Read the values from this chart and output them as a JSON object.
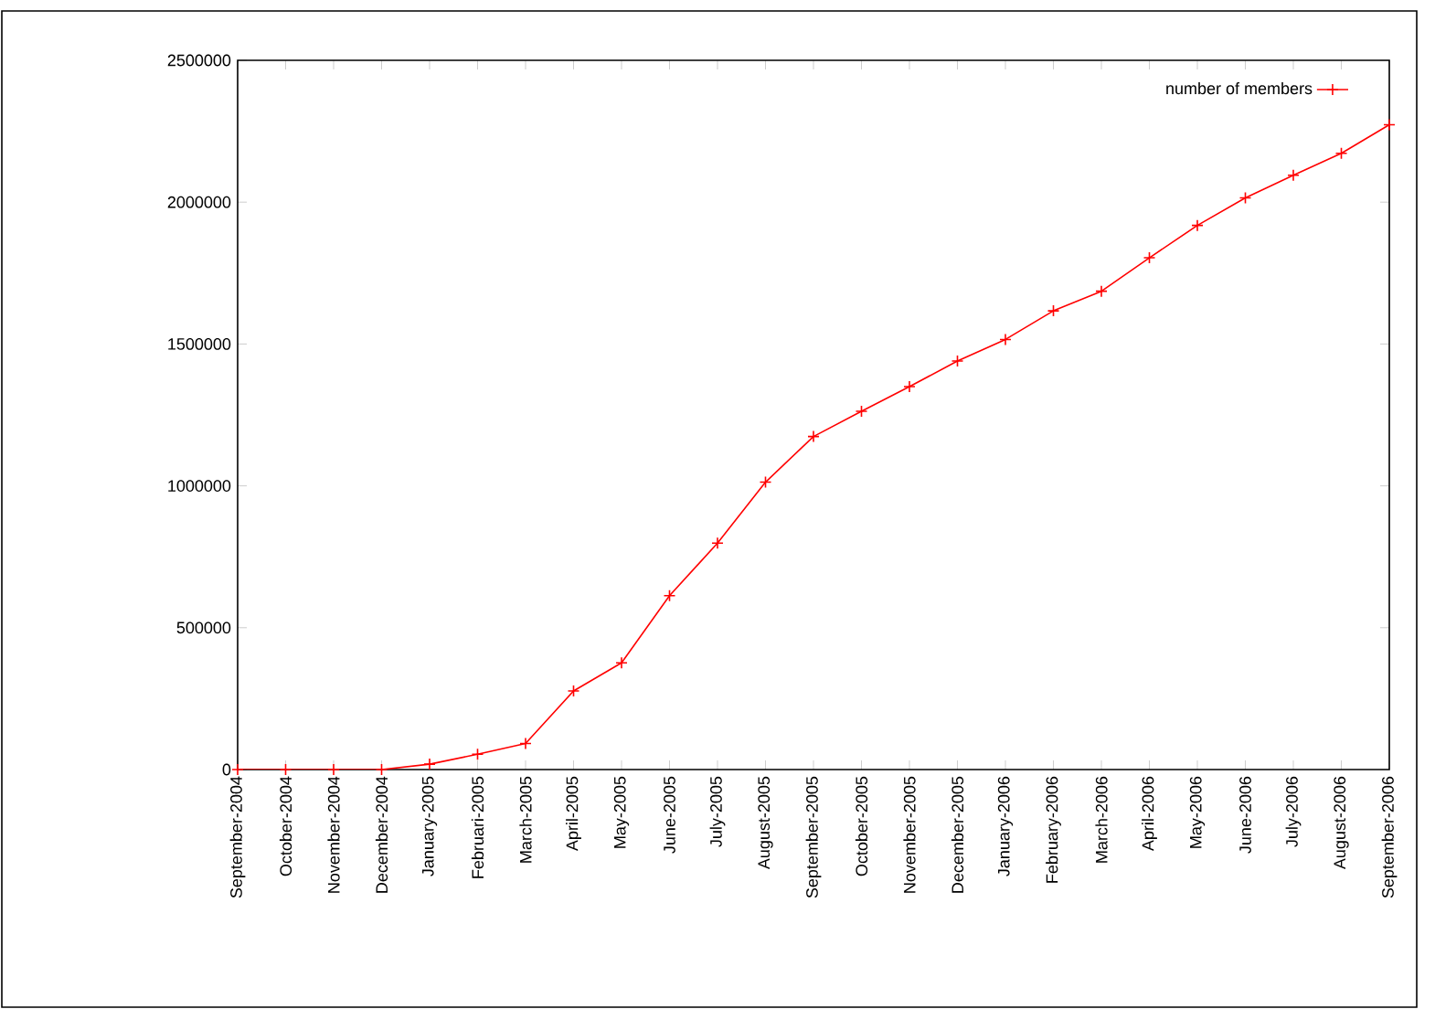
{
  "chart_data": {
    "type": "line",
    "categories": [
      "September-2004",
      "October-2004",
      "November-2004",
      "December-2004",
      "January-2005",
      "Februari-2005",
      "March-2005",
      "April-2005",
      "May-2005",
      "June-2005",
      "July-2005",
      "August-2005",
      "September-2005",
      "October-2005",
      "November-2005",
      "December-2005",
      "January-2006",
      "February-2006",
      "March-2006",
      "April-2006",
      "May-2006",
      "June-2006",
      "July-2006",
      "August-2006",
      "September-2006"
    ],
    "series": [
      {
        "name": "number of members",
        "color": "#ff0000",
        "values": [
          0,
          0,
          0,
          0,
          19000,
          54000,
          92000,
          277000,
          376000,
          613000,
          798000,
          1013000,
          1174000,
          1263000,
          1350000,
          1440000,
          1516000,
          1617000,
          1686000,
          1804000,
          1918000,
          2015000,
          2095000,
          2172000,
          2273000
        ]
      }
    ],
    "ylim": [
      0,
      2500000
    ],
    "yticks": [
      0,
      500000,
      1000000,
      1500000,
      2000000,
      2500000
    ],
    "grid": false,
    "legend": "top right",
    "marker": "cross",
    "line_style": "solid"
  }
}
